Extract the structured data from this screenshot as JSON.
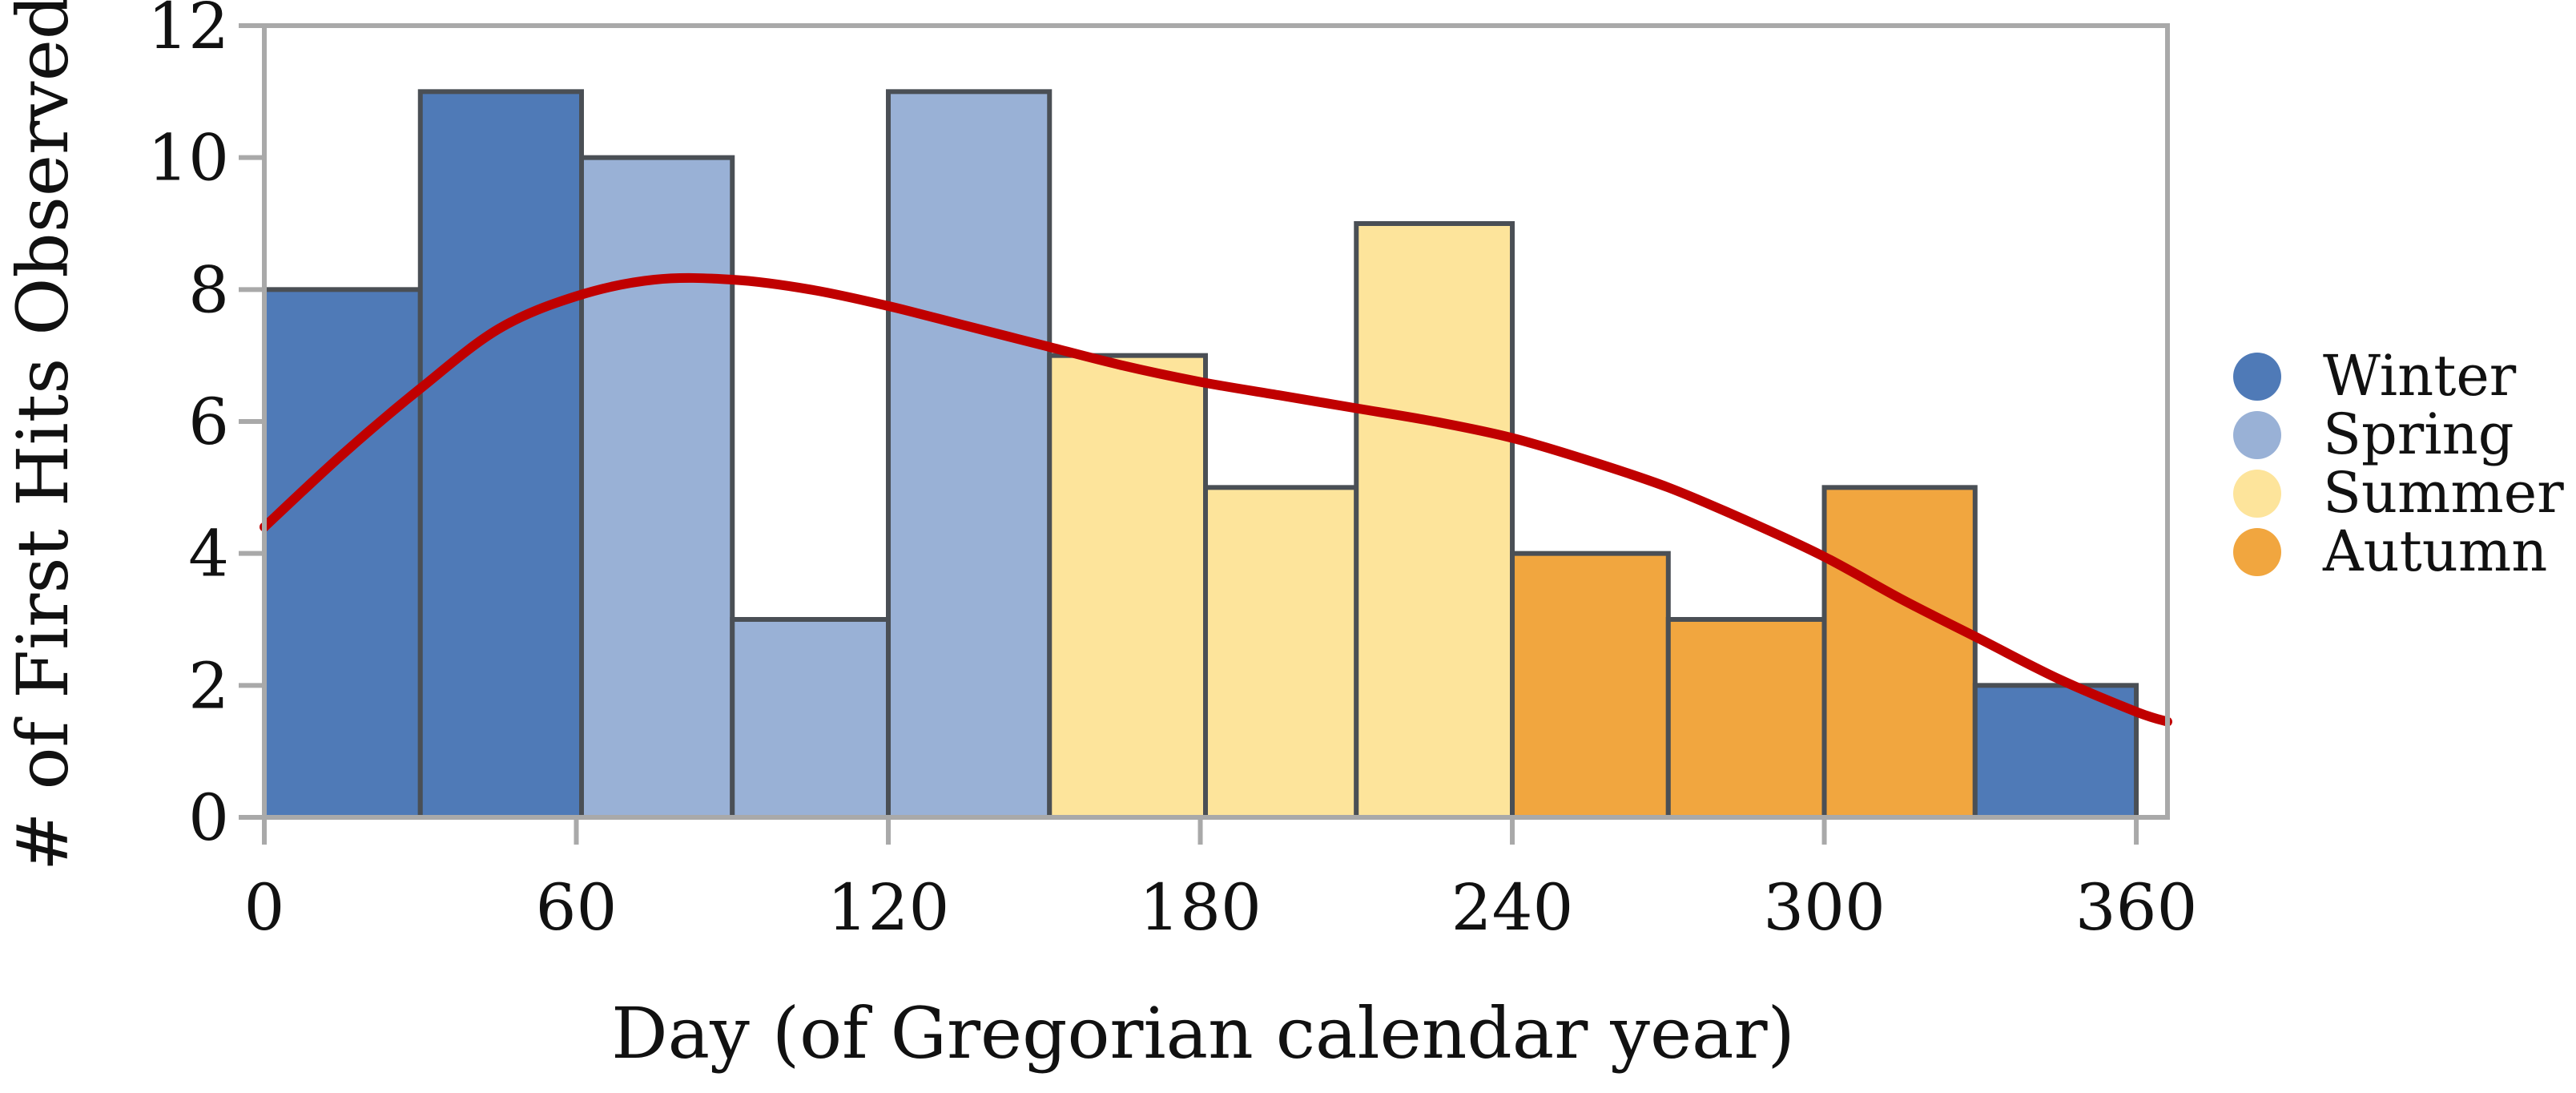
{
  "chart_data": {
    "type": "bar",
    "title": "",
    "xlabel": "Day (of Gregorian calendar year)",
    "ylabel": "# of First Hits Observed",
    "xlim": [
      0,
      366
    ],
    "ylim": [
      0,
      12
    ],
    "grid": false,
    "xticks": [
      0,
      60,
      120,
      180,
      240,
      300,
      360
    ],
    "xtick_labels": [
      "0",
      "60",
      "120",
      "180",
      "240",
      "300",
      "360"
    ],
    "yticks": [
      0,
      2,
      4,
      6,
      8,
      10,
      12
    ],
    "ytick_labels": [
      "0",
      "2",
      "4",
      "6",
      "8",
      "10",
      "12"
    ],
    "bins": [
      {
        "start": 0,
        "end": 30,
        "value": 8,
        "season": "Winter"
      },
      {
        "start": 30,
        "end": 61,
        "value": 11,
        "season": "Winter"
      },
      {
        "start": 61,
        "end": 90,
        "value": 10,
        "season": "Spring"
      },
      {
        "start": 90,
        "end": 120,
        "value": 3,
        "season": "Spring"
      },
      {
        "start": 120,
        "end": 151,
        "value": 11,
        "season": "Spring"
      },
      {
        "start": 151,
        "end": 181,
        "value": 7,
        "season": "Summer"
      },
      {
        "start": 181,
        "end": 210,
        "value": 5,
        "season": "Summer"
      },
      {
        "start": 210,
        "end": 240,
        "value": 9,
        "season": "Summer"
      },
      {
        "start": 240,
        "end": 270,
        "value": 4,
        "season": "Autumn"
      },
      {
        "start": 270,
        "end": 300,
        "value": 3,
        "season": "Autumn"
      },
      {
        "start": 300,
        "end": 329,
        "value": 5,
        "season": "Autumn"
      },
      {
        "start": 329,
        "end": 360,
        "value": 2,
        "season": "Winter"
      }
    ],
    "smooth_curve": {
      "x": [
        0,
        15,
        30,
        45,
        60,
        75,
        90,
        105,
        120,
        135,
        150,
        165,
        180,
        195,
        210,
        225,
        240,
        255,
        270,
        285,
        300,
        315,
        330,
        345,
        360,
        366
      ],
      "y": [
        4.4,
        5.5,
        6.5,
        7.4,
        7.9,
        8.15,
        8.15,
        8.0,
        7.75,
        7.45,
        7.15,
        6.85,
        6.6,
        6.4,
        6.2,
        6.0,
        5.75,
        5.4,
        5.0,
        4.5,
        3.95,
        3.3,
        2.7,
        2.1,
        1.6,
        1.45
      ],
      "color": "#c00000"
    },
    "legend": {
      "position": "right",
      "entries": [
        {
          "label": "Winter",
          "color": "#4f7ab7"
        },
        {
          "label": "Spring",
          "color": "#99b1d6"
        },
        {
          "label": "Summer",
          "color": "#fde49b"
        },
        {
          "label": "Autumn",
          "color": "#f1a63f"
        }
      ]
    },
    "colors": {
      "Winter": "#4f7ab7",
      "Spring": "#99b1d6",
      "Summer": "#fde49b",
      "Autumn": "#f1a63f",
      "bar_edge": "#4a4f55",
      "frame": "#a9a9a9",
      "axis": "#a9a9a9"
    }
  }
}
